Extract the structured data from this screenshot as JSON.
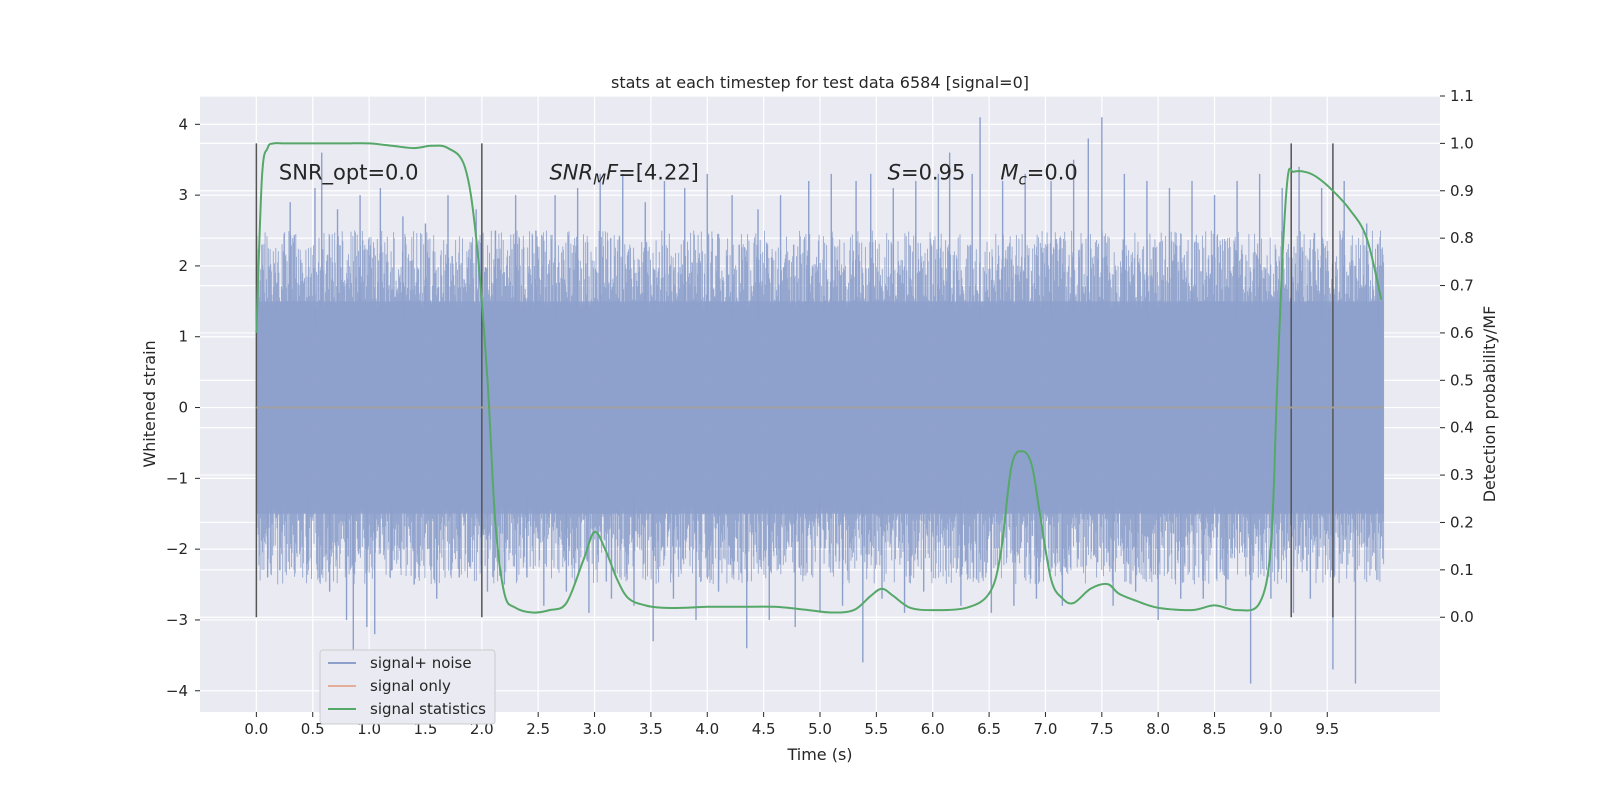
{
  "chart_data": {
    "type": "line",
    "title": "stats at each timestep for test data 6584 [signal=0]",
    "xlabel": "Time (s)",
    "ylabel": "Whitened strain",
    "y2label": "Detection probability/MF",
    "xlim": [
      -0.5,
      10.5
    ],
    "ylim": [
      -4.3,
      4.4
    ],
    "y2lim": [
      -0.2,
      1.1
    ],
    "x_ticks": [
      "0.0",
      "0.5",
      "1.0",
      "1.5",
      "2.0",
      "2.5",
      "3.0",
      "3.5",
      "4.0",
      "4.5",
      "5.0",
      "5.5",
      "6.0",
      "6.5",
      "7.0",
      "7.5",
      "8.0",
      "8.5",
      "9.0",
      "9.5"
    ],
    "x_tick_values": [
      0.0,
      0.5,
      1.0,
      1.5,
      2.0,
      2.5,
      3.0,
      3.5,
      4.0,
      4.5,
      5.0,
      5.5,
      6.0,
      6.5,
      7.0,
      7.5,
      8.0,
      8.5,
      9.0,
      9.5
    ],
    "y_ticks": [
      "4",
      "3",
      "2",
      "1",
      "0",
      "−1",
      "−2",
      "−3",
      "−4"
    ],
    "y_tick_values": [
      4,
      3,
      2,
      1,
      0,
      -1,
      -2,
      -3,
      -4
    ],
    "y2_ticks": [
      "1.1",
      "1.0",
      "0.9",
      "0.8",
      "0.7",
      "0.6",
      "0.5",
      "0.4",
      "0.3",
      "0.2",
      "0.1",
      "0.0"
    ],
    "y2_tick_values": [
      1.1,
      1.0,
      0.9,
      0.8,
      0.7,
      0.6,
      0.5,
      0.4,
      0.3,
      0.2,
      0.1,
      0.0
    ],
    "grid": true,
    "legend_position": "lower-left",
    "series": [
      {
        "name": "signal+ noise",
        "color": "#8da0cb",
        "x_range": [
          0.0,
          10.0
        ],
        "description_of_envelope_values": [
          -1.5,
          1.5
        ],
        "spikes": [
          [
            0.05,
            2.3
          ],
          [
            0.1,
            -2.4
          ],
          [
            0.3,
            2.9
          ],
          [
            0.45,
            -2.2
          ],
          [
            0.52,
            3.1
          ],
          [
            0.58,
            3.6
          ],
          [
            0.65,
            -2.6
          ],
          [
            0.72,
            2.8
          ],
          [
            0.8,
            -3.0
          ],
          [
            0.86,
            -3.6
          ],
          [
            0.92,
            3.0
          ],
          [
            0.98,
            -3.1
          ],
          [
            1.05,
            -3.2
          ],
          [
            1.1,
            3.1
          ],
          [
            1.2,
            -2.3
          ],
          [
            1.3,
            2.7
          ],
          [
            1.4,
            -2.5
          ],
          [
            1.5,
            2.6
          ],
          [
            1.6,
            -2.7
          ],
          [
            1.7,
            3.0
          ],
          [
            1.8,
            -2.4
          ],
          [
            1.95,
            2.8
          ],
          [
            2.05,
            -2.6
          ],
          [
            2.12,
            2.5
          ],
          [
            2.2,
            -2.5
          ],
          [
            2.3,
            3.0
          ],
          [
            2.4,
            -2.4
          ],
          [
            2.48,
            2.5
          ],
          [
            2.55,
            -2.8
          ],
          [
            2.65,
            3.0
          ],
          [
            2.75,
            -2.6
          ],
          [
            2.85,
            3.1
          ],
          [
            2.95,
            -2.9
          ],
          [
            3.05,
            3.3
          ],
          [
            3.15,
            -2.7
          ],
          [
            3.25,
            3.3
          ],
          [
            3.35,
            -2.8
          ],
          [
            3.45,
            2.9
          ],
          [
            3.52,
            -3.3
          ],
          [
            3.62,
            3.2
          ],
          [
            3.7,
            -2.7
          ],
          [
            3.8,
            3.1
          ],
          [
            3.9,
            -3.0
          ],
          [
            4.0,
            3.3
          ],
          [
            4.1,
            -2.6
          ],
          [
            4.22,
            3.0
          ],
          [
            4.35,
            -3.4
          ],
          [
            4.45,
            2.8
          ],
          [
            4.55,
            -3.0
          ],
          [
            4.65,
            3.0
          ],
          [
            4.78,
            -3.1
          ],
          [
            4.9,
            3.2
          ],
          [
            5.0,
            -2.9
          ],
          [
            5.1,
            3.3
          ],
          [
            5.2,
            -2.8
          ],
          [
            5.32,
            3.2
          ],
          [
            5.38,
            -3.6
          ],
          [
            5.45,
            3.3
          ],
          [
            5.55,
            -2.7
          ],
          [
            5.65,
            3.1
          ],
          [
            5.75,
            -2.9
          ],
          [
            5.85,
            3.2
          ],
          [
            5.92,
            -2.6
          ],
          [
            6.05,
            3.3
          ],
          [
            6.15,
            3.6
          ],
          [
            6.25,
            -2.8
          ],
          [
            6.35,
            3.3
          ],
          [
            6.42,
            4.1
          ],
          [
            6.52,
            -2.9
          ],
          [
            6.62,
            3.2
          ],
          [
            6.72,
            -2.8
          ],
          [
            6.82,
            3.3
          ],
          [
            6.92,
            -2.7
          ],
          [
            7.05,
            3.2
          ],
          [
            7.15,
            -2.8
          ],
          [
            7.25,
            3.5
          ],
          [
            7.38,
            3.8
          ],
          [
            7.5,
            4.1
          ],
          [
            7.6,
            -2.8
          ],
          [
            7.7,
            3.3
          ],
          [
            7.8,
            -2.6
          ],
          [
            7.9,
            3.2
          ],
          [
            8.0,
            -3.0
          ],
          [
            8.1,
            3.1
          ],
          [
            8.2,
            -2.7
          ],
          [
            8.3,
            3.2
          ],
          [
            8.4,
            -2.7
          ],
          [
            8.5,
            3.0
          ],
          [
            8.6,
            -2.8
          ],
          [
            8.7,
            3.2
          ],
          [
            8.82,
            -3.9
          ],
          [
            8.9,
            3.3
          ],
          [
            9.0,
            -2.7
          ],
          [
            9.1,
            3.1
          ],
          [
            9.2,
            -2.9
          ],
          [
            9.25,
            3.4
          ],
          [
            9.35,
            -2.7
          ],
          [
            9.45,
            3.1
          ],
          [
            9.55,
            -3.7
          ],
          [
            9.65,
            3.2
          ],
          [
            9.75,
            -3.9
          ],
          [
            9.85,
            2.6
          ],
          [
            9.95,
            2.3
          ]
        ]
      },
      {
        "name": "signal only",
        "color": "#e5ae9a",
        "x": [
          0.0,
          10.0
        ],
        "y": [
          0.0,
          0.0
        ]
      },
      {
        "name": "signal statistics",
        "color": "#55a868",
        "axis": "right",
        "x": [
          0.0,
          0.05,
          0.1,
          0.15,
          0.25,
          0.4,
          0.6,
          0.8,
          1.0,
          1.2,
          1.4,
          1.55,
          1.7,
          1.85,
          1.95,
          2.05,
          2.12,
          2.2,
          2.3,
          2.45,
          2.6,
          2.75,
          2.9,
          3.0,
          3.1,
          3.2,
          3.3,
          3.45,
          3.6,
          3.8,
          4.0,
          4.3,
          4.6,
          4.9,
          5.1,
          5.3,
          5.45,
          5.55,
          5.65,
          5.8,
          6.0,
          6.3,
          6.5,
          6.6,
          6.7,
          6.8,
          6.88,
          6.95,
          7.05,
          7.15,
          7.25,
          7.4,
          7.55,
          7.65,
          7.8,
          8.0,
          8.3,
          8.5,
          8.7,
          8.9,
          9.0,
          9.05,
          9.1,
          9.15,
          9.2,
          9.3,
          9.4,
          9.55,
          9.7,
          9.85,
          9.98
        ],
        "y": [
          0.6,
          0.93,
          0.99,
          1.0,
          1.0,
          1.0,
          1.0,
          1.0,
          1.0,
          0.995,
          0.99,
          0.995,
          0.99,
          0.95,
          0.8,
          0.5,
          0.2,
          0.05,
          0.02,
          0.01,
          0.015,
          0.03,
          0.12,
          0.18,
          0.14,
          0.08,
          0.04,
          0.025,
          0.02,
          0.02,
          0.022,
          0.022,
          0.022,
          0.015,
          0.01,
          0.015,
          0.045,
          0.06,
          0.045,
          0.02,
          0.015,
          0.02,
          0.05,
          0.13,
          0.32,
          0.35,
          0.32,
          0.22,
          0.08,
          0.04,
          0.03,
          0.06,
          0.07,
          0.05,
          0.035,
          0.02,
          0.015,
          0.025,
          0.015,
          0.03,
          0.15,
          0.45,
          0.75,
          0.93,
          0.94,
          0.94,
          0.93,
          0.9,
          0.86,
          0.8,
          0.67
        ]
      }
    ],
    "vertical_markers": [
      0.0,
      2.0,
      9.18,
      9.55
    ],
    "annotations": [
      {
        "text_prefix": "SNR_opt=0.0",
        "x": 0.2,
        "y": 3.22
      },
      {
        "text_base": "SNR",
        "text_sub": "M",
        "text_suffix": "F=[4.22]",
        "x": 2.6,
        "y": 3.22
      },
      {
        "text_italic": "S",
        "text_suffix": "=0.95",
        "x": 5.6,
        "y": 3.22
      },
      {
        "text_italic": "M",
        "text_sub": "c",
        "text_suffix": "=0.0",
        "x": 6.6,
        "y": 3.22
      }
    ]
  }
}
